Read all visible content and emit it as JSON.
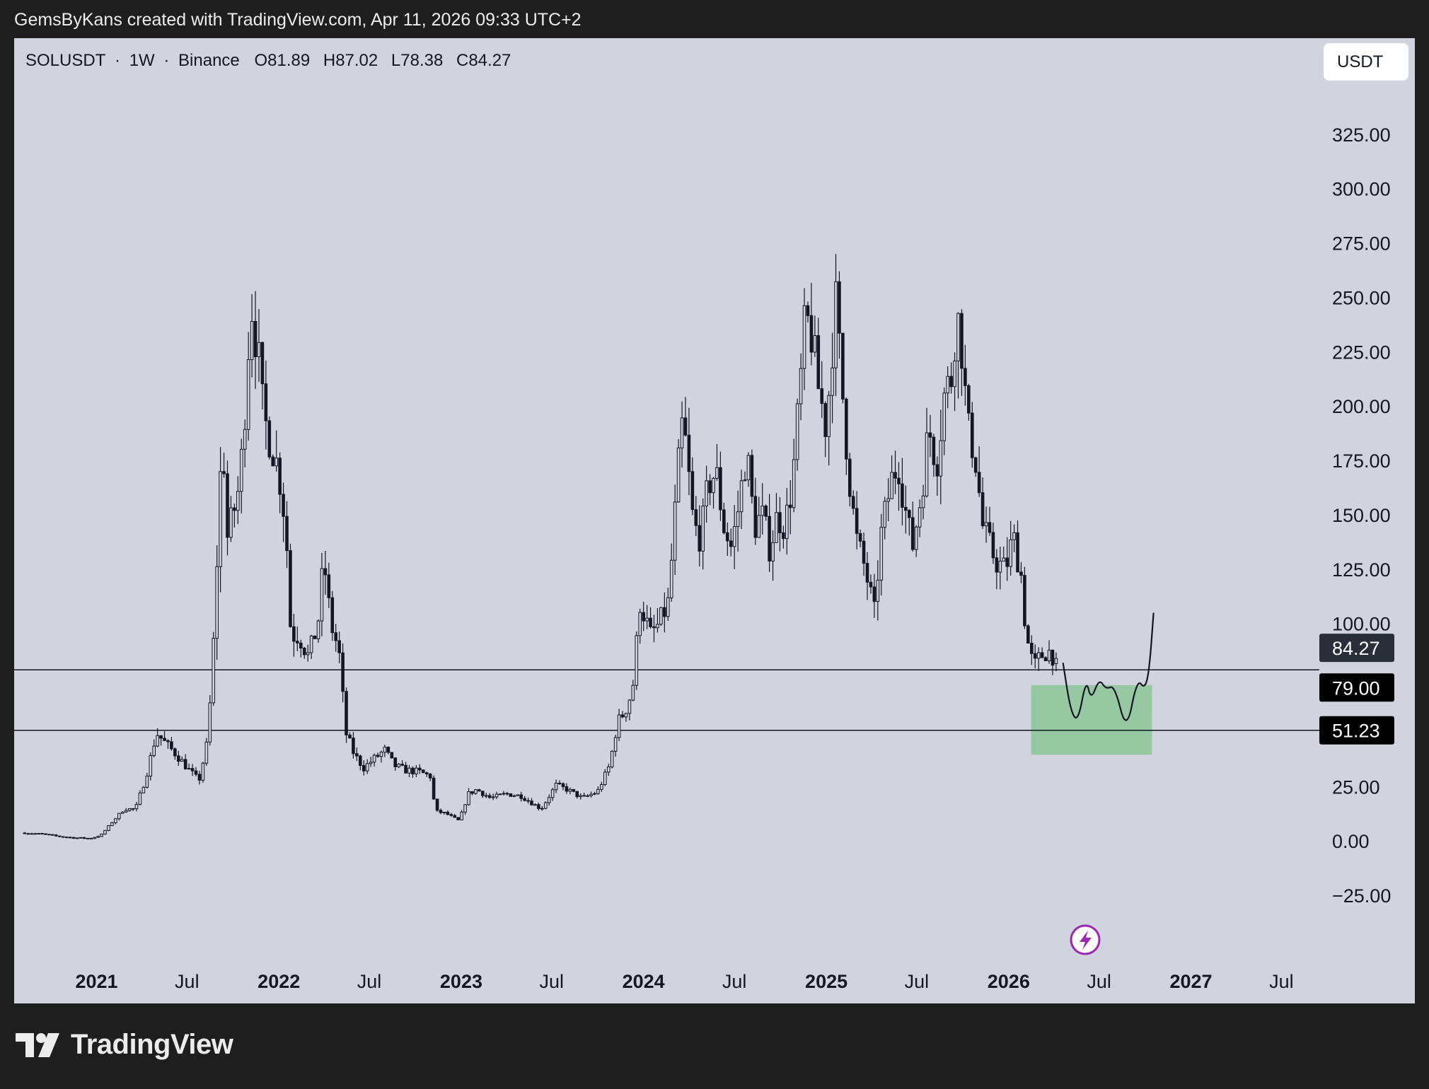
{
  "header": {
    "caption": "GemsByKans created with TradingView.com, Apr 11, 2026 09:33 UTC+2"
  },
  "symbol_bar": {
    "symbol": "SOLUSDT",
    "interval": "1W",
    "exchange": "Binance",
    "open": "O81.89",
    "high": "H87.02",
    "low": "L78.38",
    "close": "C84.27",
    "separator": "·"
  },
  "currency_button": {
    "label": "USDT"
  },
  "brand": {
    "name": "TradingView",
    "logo_icon": "tradingview-logo-icon"
  },
  "colors": {
    "background": "#d1d4de",
    "candles": "#131722",
    "zone": "#8fc69a",
    "current_price_tag": "#2a2e39",
    "level_tag": "#000000",
    "flash_icon": "#9c27b0"
  },
  "chart_data": {
    "type": "candlestick",
    "symbol": "SOLUSDT",
    "interval": "1W",
    "ylim": [
      -37,
      350
    ],
    "y_ticks": [
      {
        "value": 325,
        "label": "325.00"
      },
      {
        "value": 300,
        "label": "300.00"
      },
      {
        "value": 275,
        "label": "275.00"
      },
      {
        "value": 250,
        "label": "250.00"
      },
      {
        "value": 225,
        "label": "225.00"
      },
      {
        "value": 200,
        "label": "200.00"
      },
      {
        "value": 175,
        "label": "175.00"
      },
      {
        "value": 150,
        "label": "150.00"
      },
      {
        "value": 125,
        "label": "125.00"
      },
      {
        "value": 100,
        "label": "100.00"
      },
      {
        "value": 25,
        "label": "25.00"
      },
      {
        "value": 0,
        "label": "0.00"
      },
      {
        "value": -25,
        "label": "−25.00"
      }
    ],
    "x_range": [
      "2020-07-20",
      "2027-09-15"
    ],
    "x_ticks": [
      {
        "date": "2021-01-01",
        "label": "2021",
        "major": true
      },
      {
        "date": "2021-07-01",
        "label": "Jul",
        "major": false
      },
      {
        "date": "2022-01-01",
        "label": "2022",
        "major": true
      },
      {
        "date": "2022-07-01",
        "label": "Jul",
        "major": false
      },
      {
        "date": "2023-01-01",
        "label": "2023",
        "major": true
      },
      {
        "date": "2023-07-01",
        "label": "Jul",
        "major": false
      },
      {
        "date": "2024-01-01",
        "label": "2024",
        "major": true
      },
      {
        "date": "2024-07-01",
        "label": "Jul",
        "major": false
      },
      {
        "date": "2025-01-01",
        "label": "2025",
        "major": true
      },
      {
        "date": "2025-07-01",
        "label": "Jul",
        "major": false
      },
      {
        "date": "2026-01-01",
        "label": "2026",
        "major": true
      },
      {
        "date": "2026-07-01",
        "label": "Jul",
        "major": false
      },
      {
        "date": "2027-01-01",
        "label": "2027",
        "major": true
      },
      {
        "date": "2027-07-01",
        "label": "Jul",
        "major": false
      }
    ],
    "weekly_close": [
      [
        "2020-08-10",
        4
      ],
      [
        "2020-09-15",
        3.5
      ],
      [
        "2020-10-15",
        2.5
      ],
      [
        "2020-11-15",
        1.8
      ],
      [
        "2020-12-20",
        1.5
      ],
      [
        "2021-01-10",
        3
      ],
      [
        "2021-02-05",
        10
      ],
      [
        "2021-02-25",
        15
      ],
      [
        "2021-03-20",
        15
      ],
      [
        "2021-04-10",
        30
      ],
      [
        "2021-05-01",
        50
      ],
      [
        "2021-05-20",
        45
      ],
      [
        "2021-06-10",
        40
      ],
      [
        "2021-07-05",
        33
      ],
      [
        "2021-07-25",
        28
      ],
      [
        "2021-08-10",
        45
      ],
      [
        "2021-08-20",
        75
      ],
      [
        "2021-09-01",
        140
      ],
      [
        "2021-09-10",
        190
      ],
      [
        "2021-09-20",
        140
      ],
      [
        "2021-10-01",
        150
      ],
      [
        "2021-10-15",
        165
      ],
      [
        "2021-10-25",
        200
      ],
      [
        "2021-11-06",
        250
      ],
      [
        "2021-11-20",
        225
      ],
      [
        "2021-12-01",
        195
      ],
      [
        "2021-12-15",
        185
      ],
      [
        "2022-01-01",
        170
      ],
      [
        "2022-01-15",
        145
      ],
      [
        "2022-01-25",
        95
      ],
      [
        "2022-02-10",
        95
      ],
      [
        "2022-03-01",
        85
      ],
      [
        "2022-03-20",
        100
      ],
      [
        "2022-04-01",
        130
      ],
      [
        "2022-04-15",
        100
      ],
      [
        "2022-05-01",
        88
      ],
      [
        "2022-05-15",
        50
      ],
      [
        "2022-06-01",
        40
      ],
      [
        "2022-06-20",
        34
      ],
      [
        "2022-07-10",
        38
      ],
      [
        "2022-08-01",
        42
      ],
      [
        "2022-08-20",
        35
      ],
      [
        "2022-09-10",
        33
      ],
      [
        "2022-10-10",
        32
      ],
      [
        "2022-11-01",
        30
      ],
      [
        "2022-11-10",
        14
      ],
      [
        "2022-12-01",
        13
      ],
      [
        "2022-12-28",
        9.5
      ],
      [
        "2023-01-15",
        22
      ],
      [
        "2023-02-01",
        24
      ],
      [
        "2023-03-01",
        20
      ],
      [
        "2023-04-01",
        22
      ],
      [
        "2023-05-01",
        21
      ],
      [
        "2023-06-10",
        15
      ],
      [
        "2023-07-10",
        26
      ],
      [
        "2023-08-01",
        24
      ],
      [
        "2023-09-01",
        20
      ],
      [
        "2023-10-01",
        23
      ],
      [
        "2023-10-25",
        35
      ],
      [
        "2023-11-10",
        55
      ],
      [
        "2023-11-25",
        60
      ],
      [
        "2023-12-10",
        70
      ],
      [
        "2023-12-25",
        110
      ],
      [
        "2024-01-15",
        95
      ],
      [
        "2024-02-01",
        100
      ],
      [
        "2024-02-20",
        110
      ],
      [
        "2024-03-10",
        170
      ],
      [
        "2024-03-20",
        195
      ],
      [
        "2024-04-10",
        145
      ],
      [
        "2024-04-25",
        140
      ],
      [
        "2024-05-10",
        165
      ],
      [
        "2024-05-25",
        170
      ],
      [
        "2024-06-10",
        145
      ],
      [
        "2024-06-25",
        135
      ],
      [
        "2024-07-10",
        155
      ],
      [
        "2024-07-25",
        180
      ],
      [
        "2024-08-10",
        145
      ],
      [
        "2024-08-25",
        150
      ],
      [
        "2024-09-10",
        135
      ],
      [
        "2024-09-25",
        150
      ],
      [
        "2024-10-10",
        145
      ],
      [
        "2024-10-25",
        165
      ],
      [
        "2024-11-10",
        210
      ],
      [
        "2024-11-20",
        240
      ],
      [
        "2024-12-01",
        235
      ],
      [
        "2024-12-15",
        210
      ],
      [
        "2025-01-01",
        190
      ],
      [
        "2025-01-19",
        250
      ],
      [
        "2025-02-01",
        210
      ],
      [
        "2025-02-15",
        170
      ],
      [
        "2025-03-01",
        140
      ],
      [
        "2025-03-20",
        125
      ],
      [
        "2025-04-07",
        105
      ],
      [
        "2025-04-20",
        140
      ],
      [
        "2025-05-10",
        165
      ],
      [
        "2025-05-25",
        175
      ],
      [
        "2025-06-10",
        150
      ],
      [
        "2025-06-22",
        135
      ],
      [
        "2025-07-10",
        160
      ],
      [
        "2025-07-25",
        190
      ],
      [
        "2025-08-10",
        175
      ],
      [
        "2025-08-25",
        205
      ],
      [
        "2025-09-10",
        215
      ],
      [
        "2025-09-18",
        245
      ],
      [
        "2025-10-01",
        225
      ],
      [
        "2025-10-10",
        190
      ],
      [
        "2025-10-25",
        180
      ],
      [
        "2025-11-10",
        145
      ],
      [
        "2025-11-25",
        135
      ],
      [
        "2025-12-10",
        128
      ],
      [
        "2025-12-25",
        125
      ],
      [
        "2026-01-10",
        140
      ],
      [
        "2026-01-25",
        125
      ],
      [
        "2026-02-05",
        95
      ],
      [
        "2026-02-20",
        80
      ],
      [
        "2026-03-05",
        85
      ],
      [
        "2026-03-20",
        88
      ],
      [
        "2026-04-06",
        84.27
      ]
    ],
    "last_candle": {
      "open": 81.89,
      "high": 87.02,
      "low": 78.38,
      "close": 84.27
    },
    "horizontal_levels": [
      {
        "value": 79.0,
        "label": "79.00"
      },
      {
        "value": 51.23,
        "label": "51.23"
      }
    ],
    "current_price": {
      "value": 84.27,
      "label": "84.27"
    },
    "zone": {
      "from_date": "2026-02-15",
      "to_date": "2026-10-15",
      "top": 72,
      "bottom": 40
    },
    "projection_path": [
      [
        "2026-04-20",
        82
      ],
      [
        "2026-05-05",
        60
      ],
      [
        "2026-05-20",
        55
      ],
      [
        "2026-06-05",
        75
      ],
      [
        "2026-06-15",
        65
      ],
      [
        "2026-07-01",
        75
      ],
      [
        "2026-07-15",
        70
      ],
      [
        "2026-08-01",
        72
      ],
      [
        "2026-08-25",
        50
      ],
      [
        "2026-09-15",
        75
      ],
      [
        "2026-10-01",
        70
      ],
      [
        "2026-10-10",
        80
      ],
      [
        "2026-10-18",
        105
      ]
    ]
  }
}
